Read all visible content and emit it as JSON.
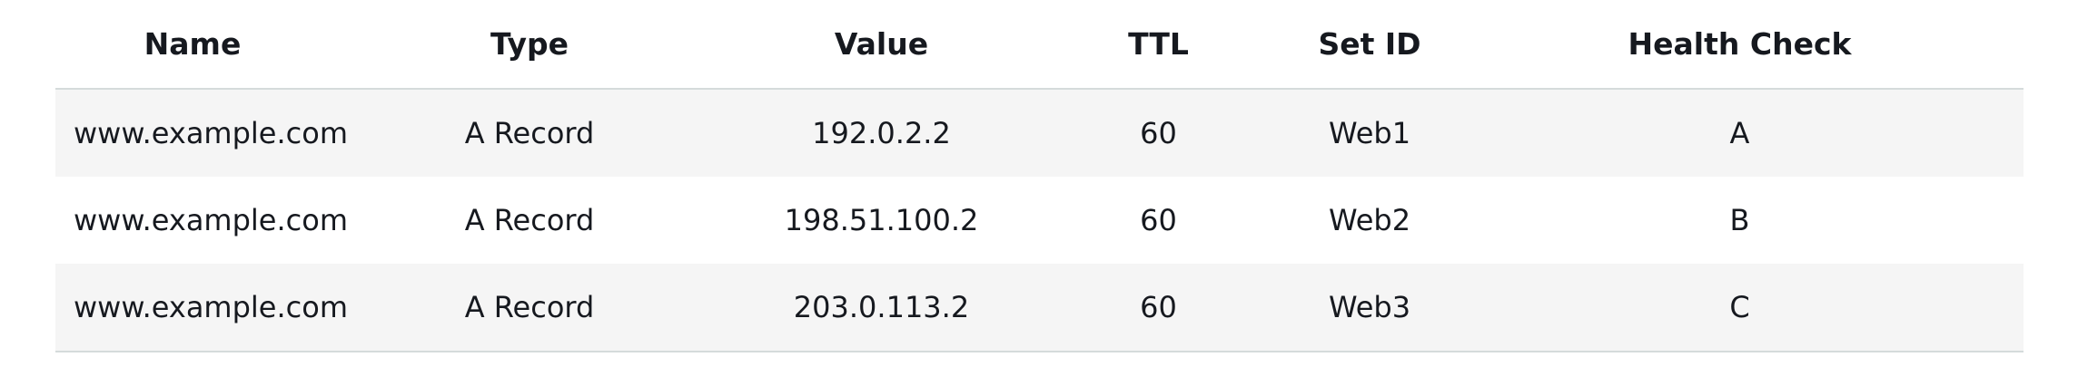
{
  "table": {
    "headers": [
      "Name",
      "Type",
      "Value",
      "TTL",
      "Set ID",
      "Health Check"
    ],
    "rows": [
      [
        "www.example.com",
        "A Record",
        "192.0.2.2",
        "60",
        "Web1",
        "A"
      ],
      [
        "www.example.com",
        "A Record",
        "198.51.100.2",
        "60",
        "Web2",
        "B"
      ],
      [
        "www.example.com",
        "A Record",
        "203.0.113.2",
        "60",
        "Web3",
        "C"
      ]
    ]
  },
  "colors": {
    "header_text": "#16191f",
    "stripe_row": "#f5f5f5",
    "divider": "#d5dbdb"
  }
}
